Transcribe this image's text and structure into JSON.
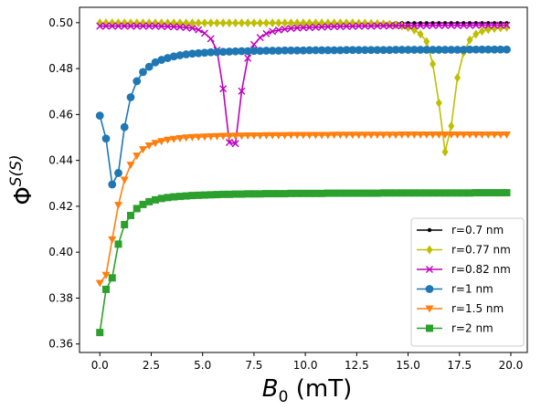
{
  "chart_data": {
    "type": "line",
    "xlabel_main": "B",
    "xlabel_sub": "0",
    "xlabel_unit": " (mT)",
    "ylabel_main": "Φ",
    "ylabel_sup": "S(S)",
    "xlim": [
      -0.99,
      20.8
    ],
    "ylim": [
      0.3563,
      0.5067
    ],
    "xticks": [
      0.0,
      2.5,
      5.0,
      7.5,
      10.0,
      12.5,
      15.0,
      17.5,
      20.0
    ],
    "xtick_labels": [
      "0.0",
      "2.5",
      "5.0",
      "7.5",
      "10.0",
      "12.5",
      "15.0",
      "17.5",
      "20.0"
    ],
    "yticks": [
      0.36,
      0.38,
      0.4,
      0.42,
      0.44,
      0.46,
      0.48,
      0.5
    ],
    "ytick_labels": [
      "0.36",
      "0.38",
      "0.40",
      "0.42",
      "0.44",
      "0.46",
      "0.48",
      "0.50"
    ],
    "grid": false,
    "legend_position": "lower-right",
    "x_range": {
      "start": 0.0,
      "step": 0.3,
      "count": 67
    },
    "series": [
      {
        "name": "r=0.7 nm",
        "color": "#000000",
        "marker": "point",
        "values": [
          0.4998,
          0.4998,
          0.4998,
          0.4998,
          0.4998,
          0.4998,
          0.4998,
          0.4998,
          0.4998,
          0.4998,
          0.4998,
          0.4998,
          0.4998,
          0.4998,
          0.4998,
          0.4998,
          0.4998,
          0.4998,
          0.4998,
          0.4998,
          0.4998,
          0.4998,
          0.4998,
          0.4998,
          0.4998,
          0.4998,
          0.4998,
          0.4998,
          0.4998,
          0.4998,
          0.4998,
          0.4998,
          0.4998,
          0.4998,
          0.4998,
          0.4998,
          0.4998,
          0.4998,
          0.4998,
          0.4998,
          0.4998,
          0.4998,
          0.4998,
          0.4998,
          0.4998,
          0.4998,
          0.4998,
          0.4998,
          0.4998,
          0.4998,
          0.4998,
          0.4998,
          0.4998,
          0.4998,
          0.4998,
          0.4998,
          0.4998,
          0.4998,
          0.4998,
          0.4998,
          0.4998,
          0.4998,
          0.4998,
          0.4998,
          0.4998,
          0.4998,
          0.4998
        ]
      },
      {
        "name": "r=0.77 nm",
        "color": "#bfbf00",
        "marker": "diamond",
        "values": [
          0.4999,
          0.4999,
          0.4999,
          0.4999,
          0.4999,
          0.4999,
          0.4999,
          0.4999,
          0.4999,
          0.4999,
          0.4999,
          0.4999,
          0.4999,
          0.4999,
          0.4999,
          0.4999,
          0.4999,
          0.4999,
          0.4999,
          0.4999,
          0.4999,
          0.4999,
          0.4999,
          0.4999,
          0.4999,
          0.4999,
          0.4999,
          0.4999,
          0.4999,
          0.4999,
          0.4999,
          0.4999,
          0.4999,
          0.4999,
          0.4999,
          0.4999,
          0.4999,
          0.4999,
          0.4999,
          0.4999,
          0.4999,
          0.4999,
          0.4998,
          0.4998,
          0.4997,
          0.4996,
          0.4995,
          0.4993,
          0.499,
          0.4986,
          0.4979,
          0.4968,
          0.495,
          0.4918,
          0.482,
          0.465,
          0.4437,
          0.455,
          0.476,
          0.487,
          0.4925,
          0.495,
          0.4963,
          0.497,
          0.4975,
          0.4978,
          0.498
        ]
      },
      {
        "name": "r=0.82 nm",
        "color": "#bf00bf",
        "marker": "x",
        "values": [
          0.4985,
          0.4985,
          0.4985,
          0.4985,
          0.4985,
          0.4985,
          0.4985,
          0.4985,
          0.4985,
          0.4985,
          0.4984,
          0.4983,
          0.4982,
          0.4981,
          0.4979,
          0.4976,
          0.4969,
          0.4954,
          0.493,
          0.488,
          0.4712,
          0.4478,
          0.4473,
          0.4702,
          0.4845,
          0.4905,
          0.4935,
          0.4952,
          0.4962,
          0.4968,
          0.4972,
          0.4975,
          0.4977,
          0.4978,
          0.4979,
          0.498,
          0.4981,
          0.4982,
          0.4983,
          0.4983,
          0.4984,
          0.4984,
          0.4985,
          0.4985,
          0.4985,
          0.4986,
          0.4986,
          0.4986,
          0.4986,
          0.4987,
          0.4987,
          0.4987,
          0.4987,
          0.4987,
          0.4988,
          0.4988,
          0.4988,
          0.4988,
          0.4988,
          0.4988,
          0.4988,
          0.4989,
          0.4989,
          0.4989,
          0.4989,
          0.4989,
          0.4989
        ]
      },
      {
        "name": "r=1 nm",
        "color": "#1f77b4",
        "marker": "circle",
        "values": [
          0.4595,
          0.4495,
          0.4295,
          0.4345,
          0.4545,
          0.4675,
          0.4745,
          0.4785,
          0.4808,
          0.4827,
          0.4838,
          0.4846,
          0.4853,
          0.4858,
          0.4862,
          0.4865,
          0.4867,
          0.4869,
          0.4871,
          0.4872,
          0.4873,
          0.4874,
          0.4875,
          0.4876,
          0.4876,
          0.4877,
          0.4877,
          0.4878,
          0.4878,
          0.4878,
          0.4879,
          0.4879,
          0.4879,
          0.4879,
          0.488,
          0.488,
          0.488,
          0.488,
          0.488,
          0.488,
          0.4881,
          0.4881,
          0.4881,
          0.4881,
          0.4881,
          0.4881,
          0.4881,
          0.4881,
          0.4882,
          0.4882,
          0.4882,
          0.4882,
          0.4882,
          0.4882,
          0.4882,
          0.4882,
          0.4882,
          0.4882,
          0.4882,
          0.4882,
          0.4883,
          0.4883,
          0.4883,
          0.4883,
          0.4883,
          0.4883,
          0.4883
        ]
      },
      {
        "name": "r=1.5 nm",
        "color": "#ff7f0e",
        "marker": "triangle-down",
        "values": [
          0.3865,
          0.39,
          0.4055,
          0.4205,
          0.4315,
          0.438,
          0.442,
          0.4448,
          0.4464,
          0.4475,
          0.4483,
          0.4489,
          0.4493,
          0.4496,
          0.4499,
          0.4501,
          0.4502,
          0.4503,
          0.4504,
          0.4505,
          0.4506,
          0.4506,
          0.4507,
          0.4507,
          0.4508,
          0.4508,
          0.4508,
          0.4509,
          0.4509,
          0.4509,
          0.4509,
          0.451,
          0.451,
          0.451,
          0.451,
          0.451,
          0.451,
          0.451,
          0.4511,
          0.4511,
          0.4511,
          0.4511,
          0.4511,
          0.4511,
          0.4511,
          0.4511,
          0.4511,
          0.4511,
          0.4511,
          0.4512,
          0.4512,
          0.4512,
          0.4512,
          0.4512,
          0.4512,
          0.4512,
          0.4512,
          0.4512,
          0.4512,
          0.4512,
          0.4512,
          0.4512,
          0.4512,
          0.4512,
          0.4512,
          0.4512,
          0.4512
        ]
      },
      {
        "name": "r=2 nm",
        "color": "#2ca02c",
        "marker": "square",
        "values": [
          0.365,
          0.3838,
          0.3888,
          0.4035,
          0.412,
          0.416,
          0.419,
          0.4208,
          0.422,
          0.4228,
          0.4234,
          0.4238,
          0.4241,
          0.4243,
          0.4245,
          0.4247,
          0.4248,
          0.4249,
          0.425,
          0.4251,
          0.4252,
          0.4252,
          0.4253,
          0.4253,
          0.4254,
          0.4254,
          0.4254,
          0.4255,
          0.4255,
          0.4255,
          0.4255,
          0.4256,
          0.4256,
          0.4256,
          0.4256,
          0.4256,
          0.4256,
          0.4257,
          0.4257,
          0.4257,
          0.4257,
          0.4257,
          0.4257,
          0.4257,
          0.4257,
          0.4257,
          0.4258,
          0.4258,
          0.4258,
          0.4258,
          0.4258,
          0.4258,
          0.4258,
          0.4258,
          0.4258,
          0.4258,
          0.4258,
          0.4258,
          0.4258,
          0.4258,
          0.4258,
          0.4259,
          0.4259,
          0.4259,
          0.4259,
          0.4259,
          0.4259
        ]
      }
    ]
  }
}
